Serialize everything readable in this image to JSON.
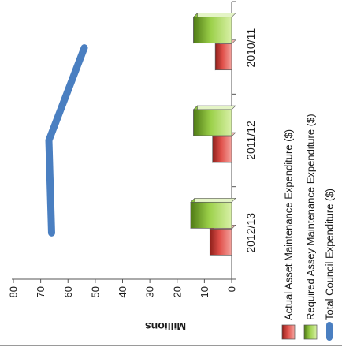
{
  "chart_data": {
    "type": "bar",
    "orientation": "rotated-90-clockwise",
    "unit_label": "Millions",
    "categories": [
      "2010/11",
      "2011/12",
      "2012/13"
    ],
    "series": [
      {
        "name": "Actual Asset Maintenance Expenditure ($)",
        "kind": "bar",
        "color": "#d9433c",
        "values": [
          6,
          7,
          8
        ]
      },
      {
        "name": "Required Assey Maintenance Expenditure ($)",
        "kind": "bar",
        "color": "#8fc63f",
        "values": [
          14,
          14,
          15
        ]
      },
      {
        "name": "Total Council Expenditure ($)",
        "kind": "line",
        "color": "#4a7fc1",
        "values": [
          54,
          67,
          66
        ]
      }
    ],
    "ylim": [
      0,
      80
    ],
    "yticks": [
      "0",
      "10",
      "20",
      "30",
      "40",
      "50",
      "60",
      "70",
      "80"
    ],
    "legend_position": "bottom",
    "grid": false
  }
}
